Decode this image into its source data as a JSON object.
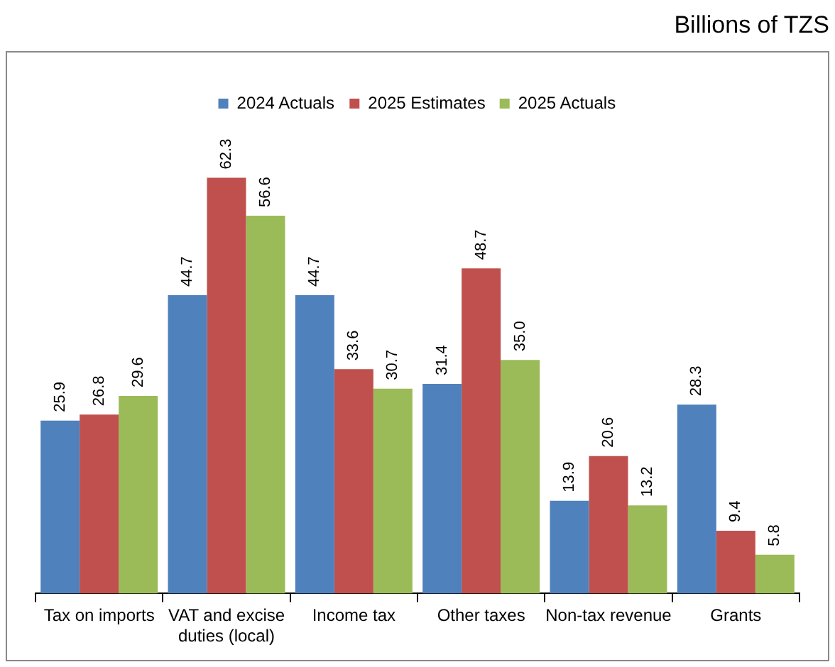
{
  "chart_data": {
    "type": "bar",
    "title": "Billions of TZS",
    "categories": [
      "Tax on imports",
      "VAT and excise duties (local)",
      "Income tax",
      "Other taxes",
      "Non-tax revenue",
      "Grants"
    ],
    "series": [
      {
        "name": "2024 Actuals",
        "color": "#4f81bd",
        "values": [
          25.9,
          44.7,
          44.7,
          31.4,
          13.9,
          28.3
        ],
        "value_labels": [
          "25.9",
          "44.7",
          "44.7",
          "31.4",
          "13.9",
          "28.3"
        ]
      },
      {
        "name": "2025 Estimates",
        "color": "#c0504d",
        "values": [
          26.8,
          62.3,
          33.6,
          48.7,
          20.6,
          9.4
        ],
        "value_labels": [
          "26.8",
          "62.3",
          "33.6",
          "48.7",
          "20.6",
          "9.4"
        ]
      },
      {
        "name": "2025 Actuals",
        "color": "#9bbb59",
        "values": [
          29.6,
          56.6,
          30.7,
          35.0,
          13.2,
          5.8
        ],
        "value_labels": [
          "29.6",
          "56.6",
          "30.7",
          "35.0",
          "13.2",
          "5.8"
        ]
      }
    ],
    "legend": "top"
  }
}
